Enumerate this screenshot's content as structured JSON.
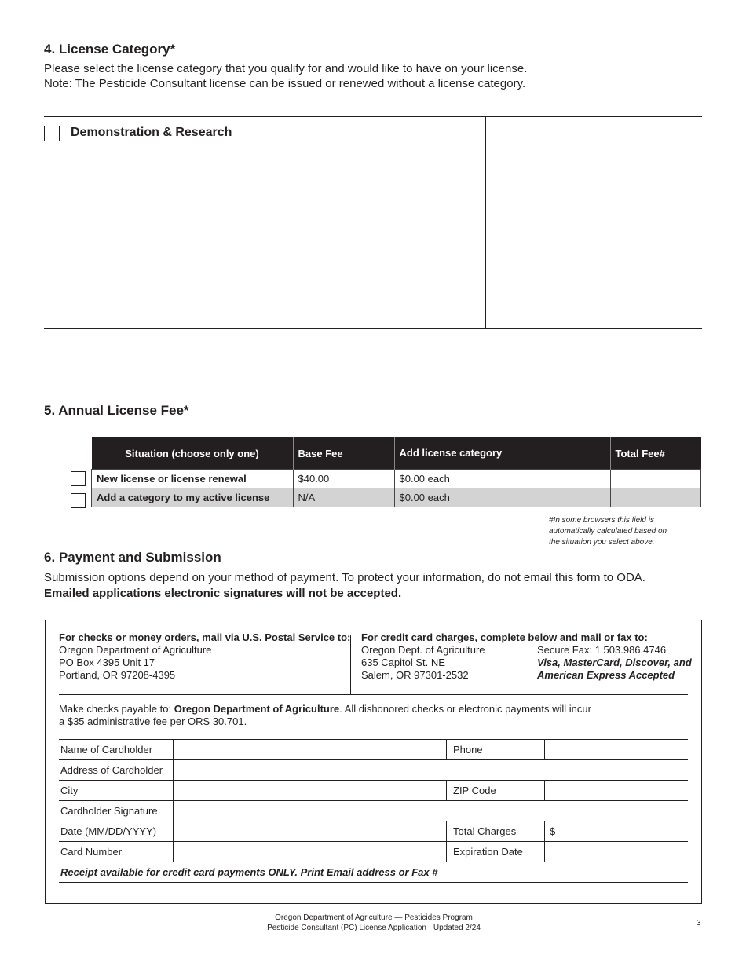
{
  "section4": {
    "title": "4. License Category*",
    "line1": "Please select the license category that you qualify for and would like to have on your license.",
    "line2": "Note: The Pesticide Consultant license can be issued or renewed without a license category.",
    "categories": [
      {
        "label": "Demonstration & Research",
        "checked": false
      }
    ]
  },
  "section5": {
    "title": "5. Annual License Fee*",
    "headers": [
      "Situation (choose only one)",
      "Base Fee",
      "Add license category",
      "Total Fee#"
    ],
    "rows": [
      {
        "situation": "New license or license renewal",
        "base": "$40.00",
        "add": "$0.00 each",
        "total": "",
        "checked": false
      },
      {
        "situation": "Add a category to my active license",
        "base": "N/A",
        "add": "$0.00 each",
        "total": "",
        "checked": false
      }
    ],
    "note": [
      "#In some browsers this field is",
      "automatically calculated  based on",
      "the situation you select above."
    ]
  },
  "section6": {
    "title": "6. Payment and Submission",
    "line1": "Submission options depend on your method of payment. To protect your information, do not email this form to ODA.",
    "line2": "Emailed applications electronic signatures will not be accepted.",
    "checks": {
      "heading": "For checks or money orders, mail via U.S. Postal Service to:",
      "lines": [
        "Oregon Department of Agriculture",
        "PO Box 4395 Unit 17",
        "Portland, OR 97208-4395"
      ]
    },
    "credit": {
      "heading": "For credit card charges, complete below and mail or fax to:",
      "lines": [
        "Oregon Dept. of Agriculture",
        "635 Capitol St. NE",
        "Salem, OR 97301-2532"
      ],
      "fax": "Secure Fax: 1.503.986.4746",
      "cards": [
        "Visa, MasterCard, Discover, and",
        "American Express Accepted"
      ]
    },
    "payable_prefix": "Make checks payable to: ",
    "payable_name": "Oregon Department of Agriculture",
    "payable_suffix": ". All dishonored checks or electronic payments will incur",
    "payable_line2": "a $35 administrative fee per ORS 30.701.",
    "fields": {
      "name": "Name of Cardholder",
      "phone": "Phone",
      "address": "Address of Cardholder",
      "city": "City",
      "zip": "ZIP Code",
      "signature": "Cardholder Signature",
      "date": "Date (MM/DD/YYYY)",
      "total": "Total Charges",
      "total_prefix": "$",
      "card": "Card Number",
      "expiration": "Expiration Date"
    },
    "receipt": "Receipt available for credit card payments ONLY. Print Email address or Fax #"
  },
  "footer": {
    "line1": "Oregon Department of Agriculture — Pesticides Program",
    "line2": "Pesticide Consultant (PC) License Application · Updated 2/24",
    "page": "3"
  }
}
